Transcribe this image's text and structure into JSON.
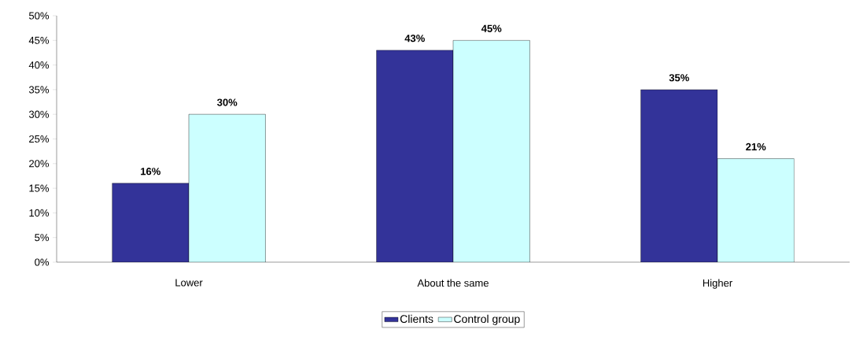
{
  "chart_data": {
    "type": "bar",
    "categories": [
      "Lower",
      "About the same",
      "Higher"
    ],
    "series": [
      {
        "name": "Clients",
        "color": "#333399",
        "values": [
          16,
          43,
          35
        ],
        "value_labels": [
          "16%",
          "43%",
          "35%"
        ]
      },
      {
        "name": "Control group",
        "color": "#ccffff",
        "values": [
          30,
          45,
          21
        ],
        "value_labels": [
          "30%",
          "45%",
          "21%"
        ]
      }
    ],
    "ylim": [
      0,
      50
    ],
    "yticks": [
      {
        "value": 0,
        "label": "0%"
      },
      {
        "value": 5,
        "label": "5%"
      },
      {
        "value": 10,
        "label": "10%"
      },
      {
        "value": 15,
        "label": "15%"
      },
      {
        "value": 20,
        "label": "20%"
      },
      {
        "value": 25,
        "label": "25%"
      },
      {
        "value": 30,
        "label": "30%"
      },
      {
        "value": 35,
        "label": "35%"
      },
      {
        "value": 40,
        "label": "40%"
      },
      {
        "value": 45,
        "label": "45%"
      },
      {
        "value": 50,
        "label": "50%"
      }
    ],
    "grid": false,
    "legend": "bottom"
  }
}
